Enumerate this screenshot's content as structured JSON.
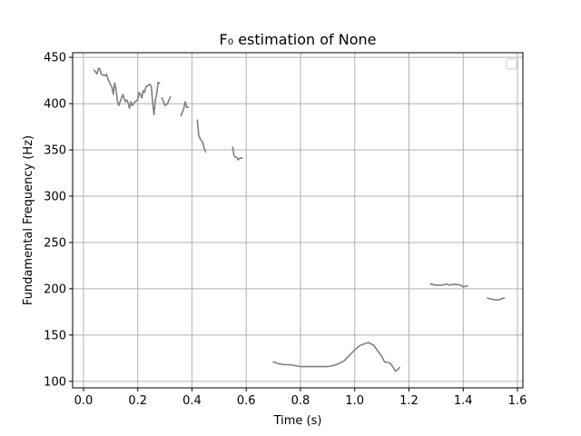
{
  "chart_data": {
    "type": "line",
    "title": "F₀ estimation of None",
    "xlabel": "Time (s)",
    "ylabel": "Fundamental Frequency (Hz)",
    "xlim": [
      -0.04,
      1.62
    ],
    "ylim": [
      93,
      455
    ],
    "xticks": [
      0.0,
      0.2,
      0.4,
      0.6,
      0.8,
      1.0,
      1.2,
      1.4,
      1.6
    ],
    "xtick_labels": [
      "0.0",
      "0.2",
      "0.4",
      "0.6",
      "0.8",
      "1.0",
      "1.2",
      "1.4",
      "1.6"
    ],
    "yticks": [
      100,
      150,
      200,
      250,
      300,
      350,
      400,
      450
    ],
    "ytick_labels": [
      "100",
      "150",
      "200",
      "250",
      "300",
      "350",
      "400",
      "450"
    ],
    "grid": true,
    "legend": {
      "placement": "top-right",
      "entries": []
    },
    "colors": {
      "line": "#808080",
      "grid": "#b0b0b0",
      "axis": "#000000"
    },
    "series": [
      {
        "segments": [
          [
            [
              0.04,
              436
            ],
            [
              0.05,
              432
            ],
            [
              0.055,
              438
            ],
            [
              0.06,
              438
            ],
            [
              0.065,
              432
            ],
            [
              0.07,
              431
            ],
            [
              0.08,
              430
            ],
            [
              0.085,
              432
            ],
            [
              0.09,
              427
            ],
            [
              0.1,
              420
            ],
            [
              0.105,
              418
            ],
            [
              0.11,
              410
            ],
            [
              0.115,
              422
            ],
            [
              0.12,
              416
            ],
            [
              0.125,
              403
            ],
            [
              0.13,
              398
            ],
            [
              0.14,
              406
            ],
            [
              0.145,
              410
            ],
            [
              0.15,
              405
            ],
            [
              0.155,
              402
            ],
            [
              0.16,
              404
            ],
            [
              0.165,
              400
            ],
            [
              0.17,
              395
            ],
            [
              0.175,
              402
            ],
            [
              0.18,
              398
            ],
            [
              0.19,
              402
            ],
            [
              0.2,
              404
            ],
            [
              0.205,
              412
            ],
            [
              0.21,
              410
            ],
            [
              0.215,
              406
            ],
            [
              0.22,
              414
            ],
            [
              0.225,
              412
            ],
            [
              0.23,
              418
            ],
            [
              0.24,
              420
            ],
            [
              0.245,
              421
            ],
            [
              0.25,
              418
            ],
            [
              0.255,
              402
            ],
            [
              0.26,
              388
            ],
            [
              0.265,
              404
            ],
            [
              0.27,
              410
            ],
            [
              0.275,
              423
            ],
            [
              0.28,
              422
            ]
          ],
          [
            [
              0.29,
              406
            ],
            [
              0.3,
              398
            ],
            [
              0.31,
              400
            ],
            [
              0.315,
              404
            ],
            [
              0.32,
              407
            ]
          ],
          [
            [
              0.36,
              387
            ],
            [
              0.37,
              395
            ],
            [
              0.375,
              402
            ],
            [
              0.38,
              396
            ],
            [
              0.385,
              396
            ]
          ],
          [
            [
              0.42,
              382
            ],
            [
              0.425,
              366
            ],
            [
              0.43,
              362
            ],
            [
              0.44,
              358
            ],
            [
              0.445,
              352
            ],
            [
              0.45,
              348
            ]
          ],
          [
            [
              0.55,
              353
            ],
            [
              0.555,
              344
            ],
            [
              0.56,
              342
            ],
            [
              0.565,
              342
            ],
            [
              0.57,
              339
            ],
            [
              0.575,
              341
            ],
            [
              0.585,
              341
            ]
          ],
          [
            [
              0.7,
              121
            ],
            [
              0.72,
              119
            ],
            [
              0.74,
              118
            ],
            [
              0.76,
              118
            ],
            [
              0.78,
              117
            ],
            [
              0.8,
              116
            ],
            [
              0.82,
              116
            ],
            [
              0.84,
              116
            ],
            [
              0.86,
              116
            ],
            [
              0.88,
              116
            ],
            [
              0.9,
              116
            ],
            [
              0.92,
              117
            ],
            [
              0.94,
              119
            ],
            [
              0.96,
              122
            ],
            [
              0.98,
              128
            ],
            [
              1.0,
              134
            ],
            [
              1.02,
              139
            ],
            [
              1.04,
              141
            ],
            [
              1.05,
              142
            ],
            [
              1.07,
              139
            ],
            [
              1.09,
              131
            ],
            [
              1.1,
              127
            ],
            [
              1.11,
              121
            ],
            [
              1.13,
              120
            ],
            [
              1.14,
              116
            ],
            [
              1.15,
              111
            ],
            [
              1.16,
              113
            ],
            [
              1.165,
              115
            ]
          ],
          [
            [
              1.28,
              205
            ],
            [
              1.3,
              204
            ],
            [
              1.32,
              204
            ],
            [
              1.34,
              205
            ],
            [
              1.35,
              204
            ],
            [
              1.37,
              205
            ],
            [
              1.39,
              204
            ],
            [
              1.4,
              202
            ],
            [
              1.41,
              203
            ],
            [
              1.415,
              203
            ]
          ],
          [
            [
              1.49,
              190
            ],
            [
              1.5,
              189
            ],
            [
              1.52,
              188
            ],
            [
              1.53,
              188
            ],
            [
              1.54,
              189
            ],
            [
              1.55,
              190
            ]
          ]
        ]
      }
    ]
  }
}
